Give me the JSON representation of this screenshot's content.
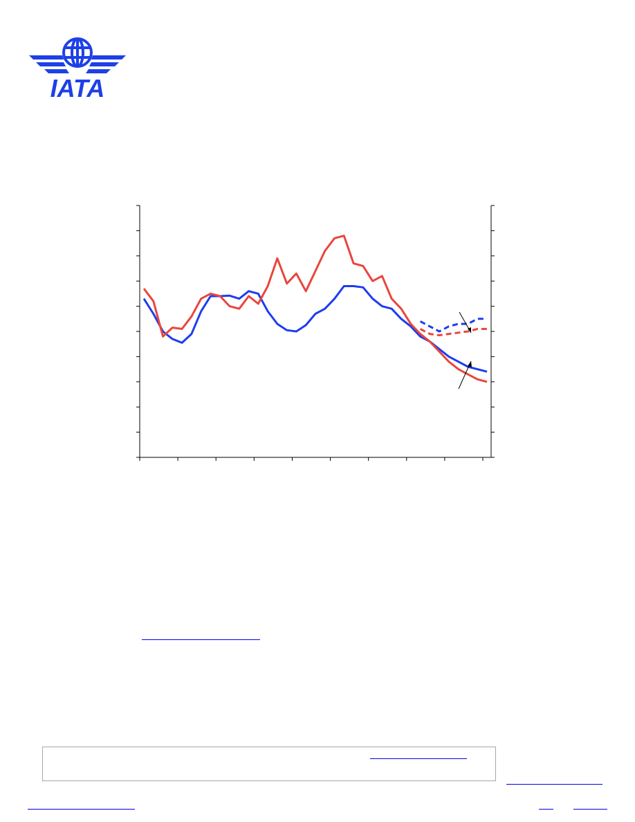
{
  "brand": {
    "logo_text": "IATA",
    "color": "#1e40e6"
  },
  "chart_data": {
    "type": "line",
    "series": [
      {
        "color": "#1e3cf0",
        "style": "solid",
        "x": [
          0,
          1,
          2,
          3,
          4,
          5,
          6,
          7,
          8,
          9,
          10,
          11,
          12,
          13,
          14,
          15,
          16,
          17,
          18,
          19,
          20,
          21,
          22,
          23,
          24,
          25,
          26,
          27,
          28,
          29,
          30,
          31,
          32,
          33,
          34,
          35,
          36
        ],
        "values": [
          6.3,
          5.7,
          5.0,
          4.7,
          4.55,
          4.9,
          5.8,
          6.4,
          6.4,
          6.42,
          6.3,
          6.6,
          6.5,
          5.8,
          5.3,
          5.05,
          5.0,
          5.25,
          5.7,
          5.9,
          6.3,
          6.8,
          6.8,
          6.75,
          6.3,
          6.0,
          5.9,
          5.5,
          5.2,
          4.8,
          4.6,
          4.3,
          4.0,
          3.8,
          3.6,
          3.5,
          3.4
        ]
      },
      {
        "color": "#e8463c",
        "style": "solid",
        "x": [
          0,
          1,
          2,
          3,
          4,
          5,
          6,
          7,
          8,
          9,
          10,
          11,
          12,
          13,
          14,
          15,
          16,
          17,
          18,
          19,
          20,
          21,
          22,
          23,
          24,
          25,
          26,
          27,
          28,
          29,
          30,
          31,
          32,
          33,
          34,
          35,
          36
        ],
        "values": [
          6.7,
          6.2,
          4.8,
          5.15,
          5.1,
          5.6,
          6.3,
          6.5,
          6.4,
          6.0,
          5.9,
          6.4,
          6.1,
          6.8,
          7.9,
          6.9,
          7.3,
          6.6,
          7.4,
          8.2,
          8.7,
          8.8,
          7.7,
          7.6,
          7.0,
          7.2,
          6.3,
          5.9,
          5.3,
          4.9,
          4.6,
          4.2,
          3.8,
          3.5,
          3.3,
          3.1,
          3.0
        ]
      },
      {
        "color": "#1e3cf0",
        "style": "dashed",
        "x": [
          29,
          30,
          31,
          32,
          33,
          34,
          35,
          36
        ],
        "values": [
          5.4,
          5.2,
          5.0,
          5.2,
          5.3,
          5.3,
          5.5,
          5.5
        ]
      },
      {
        "color": "#e8463c",
        "style": "dashed",
        "x": [
          29,
          30,
          31,
          32,
          33,
          34,
          35,
          36
        ],
        "values": [
          5.1,
          4.9,
          4.85,
          4.9,
          4.95,
          5.0,
          5.1,
          5.1
        ]
      }
    ],
    "xlim": [
      0,
      36
    ],
    "ylim": [
      0,
      10
    ],
    "y_ticks": 10,
    "x_ticks": 9,
    "grid": false
  }
}
